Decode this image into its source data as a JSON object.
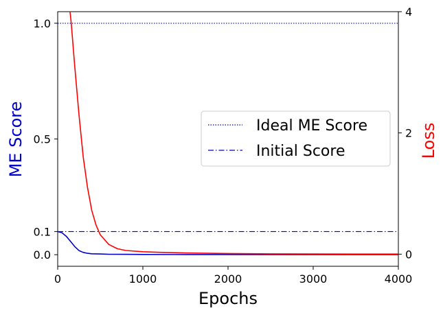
{
  "chart_data": {
    "type": "line",
    "xlabel": "Epochs",
    "ylabel_left": "ME Score",
    "ylabel_right": "Loss",
    "xlim": [
      0,
      4000
    ],
    "ylim_left": [
      -0.05,
      1.05
    ],
    "ylim_right": [
      -0.2,
      4.0
    ],
    "xticks": [
      0,
      1000,
      2000,
      3000,
      4000
    ],
    "xtick_labels": [
      "0",
      "1000",
      "2000",
      "3000",
      "4000"
    ],
    "yticks_left": [
      0.0,
      0.1,
      0.5,
      1.0
    ],
    "ytick_labels_left": [
      "0.0",
      "0.1",
      "0.5",
      "1.0"
    ],
    "yticks_right": [
      0,
      2,
      4
    ],
    "ytick_labels_right": [
      "0",
      "2",
      "4"
    ],
    "legend_position": "center-right",
    "colors": {
      "me_score": "#0000cc",
      "loss": "#ff0000",
      "ideal": "#0000cc",
      "initial": "#0000cc",
      "left_label": "#0000cc",
      "right_label": "#ff0000"
    },
    "series": [
      {
        "name": "Ideal ME Score",
        "axis": "left",
        "style": "dotted",
        "x": [
          0,
          4000
        ],
        "y": [
          1.0,
          1.0
        ]
      },
      {
        "name": "Initial Score",
        "axis": "left",
        "style": "dashdot",
        "x": [
          0,
          4000
        ],
        "y": [
          0.1,
          0.1
        ]
      },
      {
        "axis": "left",
        "style": "solid",
        "color_key": "me_score",
        "x": [
          0,
          50,
          100,
          150,
          200,
          250,
          300,
          350,
          400,
          500,
          600,
          800,
          1000,
          1500,
          2000,
          3000,
          4000
        ],
        "y": [
          0.1,
          0.095,
          0.08,
          0.058,
          0.035,
          0.018,
          0.01,
          0.006,
          0.004,
          0.003,
          0.002,
          0.0015,
          0.001,
          0.0008,
          0.0006,
          0.0004,
          0.0003
        ]
      },
      {
        "axis": "right",
        "style": "solid",
        "color_key": "loss",
        "x": [
          0,
          130,
          160,
          200,
          250,
          300,
          350,
          400,
          450,
          500,
          600,
          700,
          800,
          1000,
          1200,
          1500,
          2000,
          2500,
          3000,
          4000
        ],
        "y": [
          6.0,
          4.2,
          3.8,
          3.1,
          2.3,
          1.6,
          1.1,
          0.72,
          0.48,
          0.32,
          0.16,
          0.09,
          0.06,
          0.04,
          0.03,
          0.02,
          0.01,
          0.005,
          0.003,
          0.002
        ]
      }
    ]
  }
}
